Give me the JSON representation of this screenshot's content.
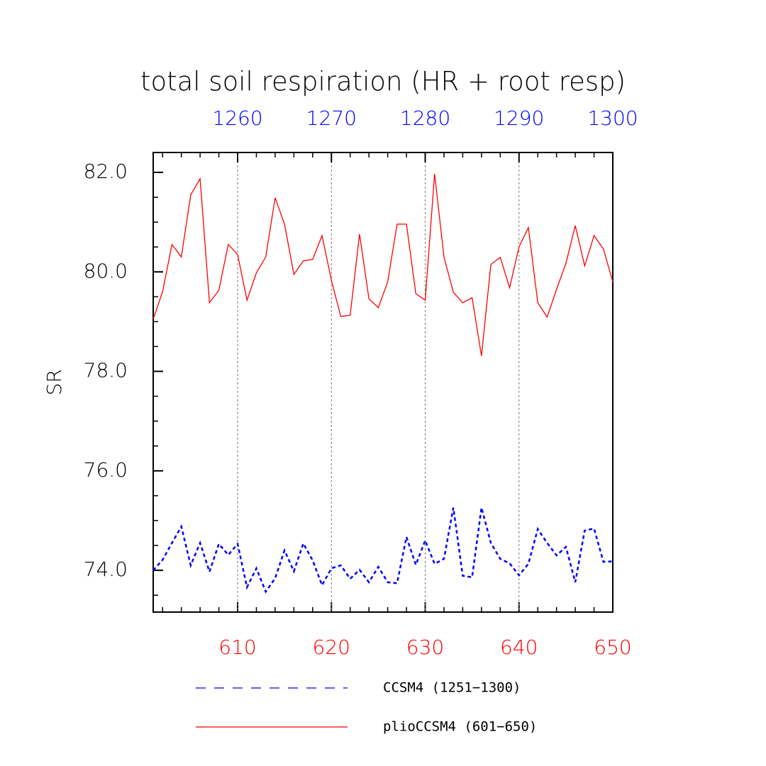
{
  "chart_data": {
    "type": "line",
    "title": "total soil respiration (HR + root resp)",
    "ylabel": "SR",
    "xlim": [
      601,
      650
    ],
    "xticks": [
      610,
      620,
      630,
      640,
      650
    ],
    "xminorticks": [
      602,
      604,
      606,
      608,
      612,
      614,
      616,
      618,
      622,
      624,
      626,
      628,
      632,
      634,
      636,
      638,
      642,
      644,
      646,
      648
    ],
    "xtick_color": "#ff0000",
    "x2lim": [
      1251,
      1300
    ],
    "x2ticks": [
      1260,
      1270,
      1280,
      1290,
      1300
    ],
    "x2minorticks": [
      1252,
      1254,
      1256,
      1258,
      1262,
      1264,
      1266,
      1268,
      1272,
      1274,
      1276,
      1278,
      1282,
      1284,
      1286,
      1288,
      1292,
      1294,
      1296,
      1298
    ],
    "x2tick_color": "#0000ff",
    "ylim": [
      73.16,
      82.4
    ],
    "yticks": [
      {
        "value": 74,
        "label": "74.0"
      },
      {
        "value": 76,
        "label": "76.0"
      },
      {
        "value": 78,
        "label": "78.0"
      },
      {
        "value": 80,
        "label": "80.0"
      },
      {
        "value": 82,
        "label": "82.0"
      }
    ],
    "yminorticks": [
      73.5,
      74.5,
      75,
      75.5,
      76.5,
      77,
      77.5,
      78.5,
      79,
      79.5,
      80.5,
      81,
      81.5
    ],
    "grid": true,
    "series": [
      {
        "name": "CCSM4 (1251−1300)",
        "color": "#0000ff",
        "linestyle": "dashed",
        "xaxis": "x2",
        "x": [
          1251,
          1252,
          1253,
          1254,
          1255,
          1256,
          1257,
          1258,
          1259,
          1260,
          1261,
          1262,
          1263,
          1264,
          1265,
          1266,
          1267,
          1268,
          1269,
          1270,
          1271,
          1272,
          1273,
          1274,
          1275,
          1276,
          1277,
          1278,
          1279,
          1280,
          1281,
          1282,
          1283,
          1284,
          1285,
          1286,
          1287,
          1288,
          1289,
          1290,
          1291,
          1292,
          1293,
          1294,
          1295,
          1296,
          1297,
          1298,
          1299,
          1300
        ],
        "values": [
          74.0,
          74.21,
          74.55,
          74.88,
          74.1,
          74.55,
          73.97,
          74.53,
          74.31,
          74.53,
          73.66,
          74.04,
          73.57,
          73.84,
          74.4,
          73.98,
          74.54,
          74.2,
          73.7,
          74.04,
          74.1,
          73.83,
          74.01,
          73.76,
          74.07,
          73.76,
          73.74,
          74.67,
          74.11,
          74.6,
          74.13,
          74.23,
          75.26,
          73.89,
          73.86,
          75.26,
          74.55,
          74.23,
          74.14,
          73.9,
          74.13,
          74.83,
          74.55,
          74.3,
          74.47,
          73.76,
          74.8,
          74.84,
          74.17,
          74.18
        ]
      },
      {
        "name": "plioCCSM4 (601−650)",
        "color": "#ff0000",
        "linestyle": "solid",
        "xaxis": "x",
        "x": [
          601,
          602,
          603,
          604,
          605,
          606,
          607,
          608,
          609,
          610,
          611,
          612,
          613,
          614,
          615,
          616,
          617,
          618,
          619,
          620,
          621,
          622,
          623,
          624,
          625,
          626,
          627,
          628,
          629,
          630,
          631,
          632,
          633,
          634,
          635,
          636,
          637,
          638,
          639,
          640,
          641,
          642,
          643,
          644,
          645,
          646,
          647,
          648,
          649,
          650
        ],
        "values": [
          79.05,
          79.6,
          80.55,
          80.3,
          81.55,
          81.87,
          79.38,
          79.63,
          80.55,
          80.35,
          79.43,
          79.98,
          80.3,
          81.49,
          80.96,
          79.95,
          80.22,
          80.25,
          80.73,
          79.83,
          79.1,
          79.13,
          80.76,
          79.46,
          79.28,
          79.8,
          80.96,
          80.96,
          79.56,
          79.43,
          81.97,
          80.3,
          79.59,
          79.38,
          79.48,
          78.31,
          80.15,
          80.29,
          79.68,
          80.5,
          80.89,
          79.38,
          79.09,
          79.65,
          80.17,
          80.93,
          80.12,
          80.73,
          80.46,
          79.8
        ]
      }
    ]
  }
}
